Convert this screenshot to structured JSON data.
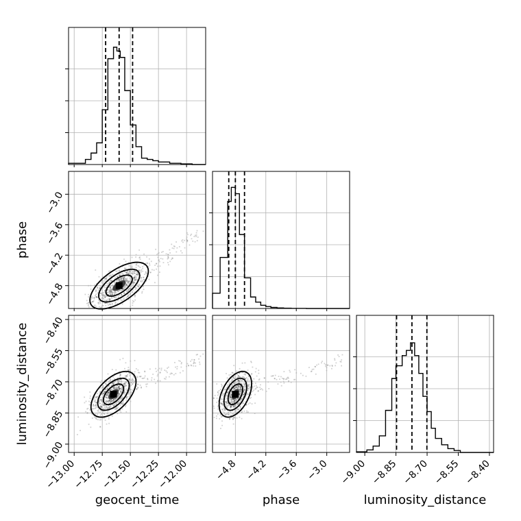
{
  "chart_data": {
    "type": "corner",
    "grid": true,
    "parameters": [
      {
        "name": "geocent_time",
        "label": "geocent_time",
        "range": [
          -13.05,
          -11.83
        ],
        "ticks": [
          -13.0,
          -12.75,
          -12.5,
          -12.25,
          -12.0
        ],
        "tick_labels": [
          "−13.00",
          "−12.75",
          "−12.50",
          "−12.25",
          "−12.00"
        ],
        "quantiles": [
          -12.72,
          -12.6,
          -12.48
        ]
      },
      {
        "name": "phase",
        "label": "phase",
        "range": [
          -5.25,
          -2.55
        ],
        "ticks": [
          -4.8,
          -4.2,
          -3.6,
          -3.0
        ],
        "tick_labels": [
          "−4.8",
          "−4.2",
          "−3.6",
          "−3.0"
        ],
        "quantiles": [
          -4.93,
          -4.8,
          -4.62
        ]
      },
      {
        "name": "luminosity_distance",
        "label": "luminosity_distance",
        "range": [
          -9.04,
          -8.38
        ],
        "ticks": [
          -9.0,
          -8.85,
          -8.7,
          -8.55,
          -8.4
        ],
        "tick_labels": [
          "−9.00",
          "−8.85",
          "−8.70",
          "−8.55",
          "−8.40"
        ],
        "quantiles": [
          -8.847,
          -8.773,
          -8.701
        ]
      }
    ],
    "histograms": [
      {
        "parameter": "geocent_time",
        "edges": [
          -13.05,
          -12.9,
          -12.85,
          -12.8,
          -12.75,
          -12.7,
          -12.65,
          -12.62,
          -12.59,
          -12.55,
          -12.5,
          -12.45,
          -12.4,
          -12.35,
          -12.3,
          -12.25,
          -12.2,
          -12.15,
          -12.1,
          -12.05,
          -11.95,
          -11.83
        ],
        "counts": [
          0.01,
          0.04,
          0.09,
          0.17,
          0.43,
          0.83,
          0.92,
          0.89,
          0.84,
          0.58,
          0.31,
          0.14,
          0.05,
          0.04,
          0.03,
          0.02,
          0.02,
          0.01,
          0.01,
          0.005,
          0.0
        ]
      },
      {
        "parameter": "phase",
        "edges": [
          -5.25,
          -5.1,
          -4.95,
          -4.88,
          -4.8,
          -4.72,
          -4.62,
          -4.5,
          -4.4,
          -4.3,
          -4.2,
          -4.1,
          -3.98,
          -3.85,
          -3.7,
          -3.4,
          -2.55
        ],
        "counts": [
          0.12,
          0.4,
          0.84,
          0.95,
          0.9,
          0.58,
          0.24,
          0.09,
          0.05,
          0.025,
          0.015,
          0.008,
          0.004,
          0.002,
          0.001,
          0.0
        ]
      },
      {
        "parameter": "luminosity_distance",
        "edges": [
          -9.04,
          -8.99,
          -8.96,
          -8.93,
          -8.9,
          -8.87,
          -8.85,
          -8.82,
          -8.8,
          -8.78,
          -8.76,
          -8.74,
          -8.72,
          -8.7,
          -8.68,
          -8.66,
          -8.63,
          -8.6,
          -8.57,
          -8.54,
          -8.38
        ],
        "counts": [
          0.005,
          0.02,
          0.05,
          0.13,
          0.33,
          0.58,
          0.68,
          0.76,
          0.8,
          0.86,
          0.76,
          0.62,
          0.44,
          0.32,
          0.19,
          0.11,
          0.06,
          0.03,
          0.015,
          0.0
        ]
      }
    ],
    "pairs": [
      {
        "x": "geocent_time",
        "y": "phase",
        "mean": [
          -12.6,
          -4.8
        ],
        "sd": [
          0.13,
          0.23
        ],
        "corr": 0.62,
        "tail": true
      },
      {
        "x": "geocent_time",
        "y": "luminosity_distance",
        "mean": [
          -12.65,
          -8.76
        ],
        "sd": [
          0.1,
          0.055
        ],
        "corr": 0.55,
        "tail": true
      },
      {
        "x": "phase",
        "y": "luminosity_distance",
        "mean": [
          -4.8,
          -8.76
        ],
        "sd": [
          0.16,
          0.055
        ],
        "corr": 0.45,
        "tail": true
      }
    ]
  }
}
